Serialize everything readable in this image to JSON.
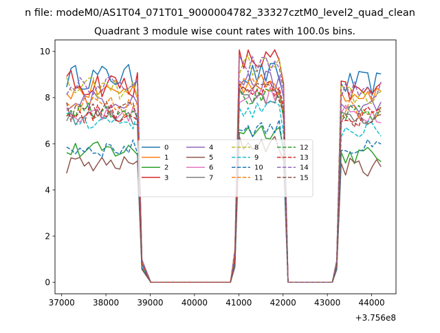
{
  "suptitle": "n file: modeM0/AS1T04_071T01_9000004782_33327cztM0_level2_quad_clean",
  "chart_data": {
    "type": "line",
    "title": "Quadrant 3 module wise count rates with 100.0s bins.",
    "xlabel": "",
    "ylabel": "",
    "x_offset_label": "+3.756e8",
    "xlim": [
      36850,
      44550
    ],
    "ylim": [
      -0.5,
      10.5
    ],
    "xticks": [
      37000,
      38000,
      39000,
      40000,
      41000,
      42000,
      43000,
      44000
    ],
    "yticks": [
      0,
      2,
      4,
      6,
      8,
      10
    ],
    "legend_position": "center",
    "segments": [
      {
        "start": 37112,
        "end": 38712,
        "dt": 100
      },
      {
        "start": 38812,
        "end": 40812,
        "dt": 200
      },
      {
        "start": 40912,
        "end": 42012,
        "dt": 100
      },
      {
        "start": 42112,
        "end": 43112,
        "dt": 200
      },
      {
        "start": 43212,
        "end": 44212,
        "dt": 100
      }
    ],
    "series": [
      {
        "name": "0",
        "color": "#1f77b4",
        "dashed": false,
        "levels": [
          8.9,
          9.0,
          8.6
        ],
        "noise": 0.55
      },
      {
        "name": "1",
        "color": "#ff7f0e",
        "dashed": false,
        "levels": [
          8.3,
          8.6,
          8.2
        ],
        "noise": 0.45
      },
      {
        "name": "2",
        "color": "#2ca02c",
        "dashed": false,
        "levels": [
          5.7,
          6.6,
          5.5
        ],
        "noise": 0.4
      },
      {
        "name": "3",
        "color": "#d62728",
        "dashed": false,
        "levels": [
          8.6,
          9.6,
          8.2
        ],
        "noise": 0.6
      },
      {
        "name": "4",
        "color": "#9467bd",
        "dashed": false,
        "levels": [
          7.9,
          8.7,
          7.6
        ],
        "noise": 0.45
      },
      {
        "name": "5",
        "color": "#8c564b",
        "dashed": false,
        "levels": [
          5.1,
          6.0,
          5.0
        ],
        "noise": 0.4
      },
      {
        "name": "6",
        "color": "#e377c2",
        "dashed": false,
        "levels": [
          7.3,
          8.1,
          7.3
        ],
        "noise": 0.4
      },
      {
        "name": "7",
        "color": "#7f7f7f",
        "dashed": false,
        "levels": [
          7.2,
          8.1,
          7.2
        ],
        "noise": 0.4
      },
      {
        "name": "8",
        "color": "#bcbd22",
        "dashed": true,
        "levels": [
          8.4,
          9.4,
          8.1
        ],
        "noise": 0.5
      },
      {
        "name": "9",
        "color": "#17becf",
        "dashed": true,
        "levels": [
          7.0,
          7.5,
          6.6
        ],
        "noise": 0.4
      },
      {
        "name": "10",
        "color": "#1f77b4",
        "dashed": true,
        "levels": [
          5.8,
          6.7,
          5.8
        ],
        "noise": 0.4
      },
      {
        "name": "11",
        "color": "#ff7f0e",
        "dashed": true,
        "levels": [
          7.6,
          8.5,
          7.5
        ],
        "noise": 0.45
      },
      {
        "name": "12",
        "color": "#2ca02c",
        "dashed": true,
        "levels": [
          7.5,
          8.0,
          7.3
        ],
        "noise": 0.4
      },
      {
        "name": "13",
        "color": "#d62728",
        "dashed": true,
        "levels": [
          7.3,
          8.3,
          7.2
        ],
        "noise": 0.45
      },
      {
        "name": "14",
        "color": "#9467bd",
        "dashed": true,
        "levels": [
          8.5,
          9.4,
          8.3
        ],
        "noise": 0.45
      },
      {
        "name": "15",
        "color": "#8c564b",
        "dashed": true,
        "levels": [
          7.4,
          8.2,
          7.1
        ],
        "noise": 0.45
      }
    ]
  }
}
